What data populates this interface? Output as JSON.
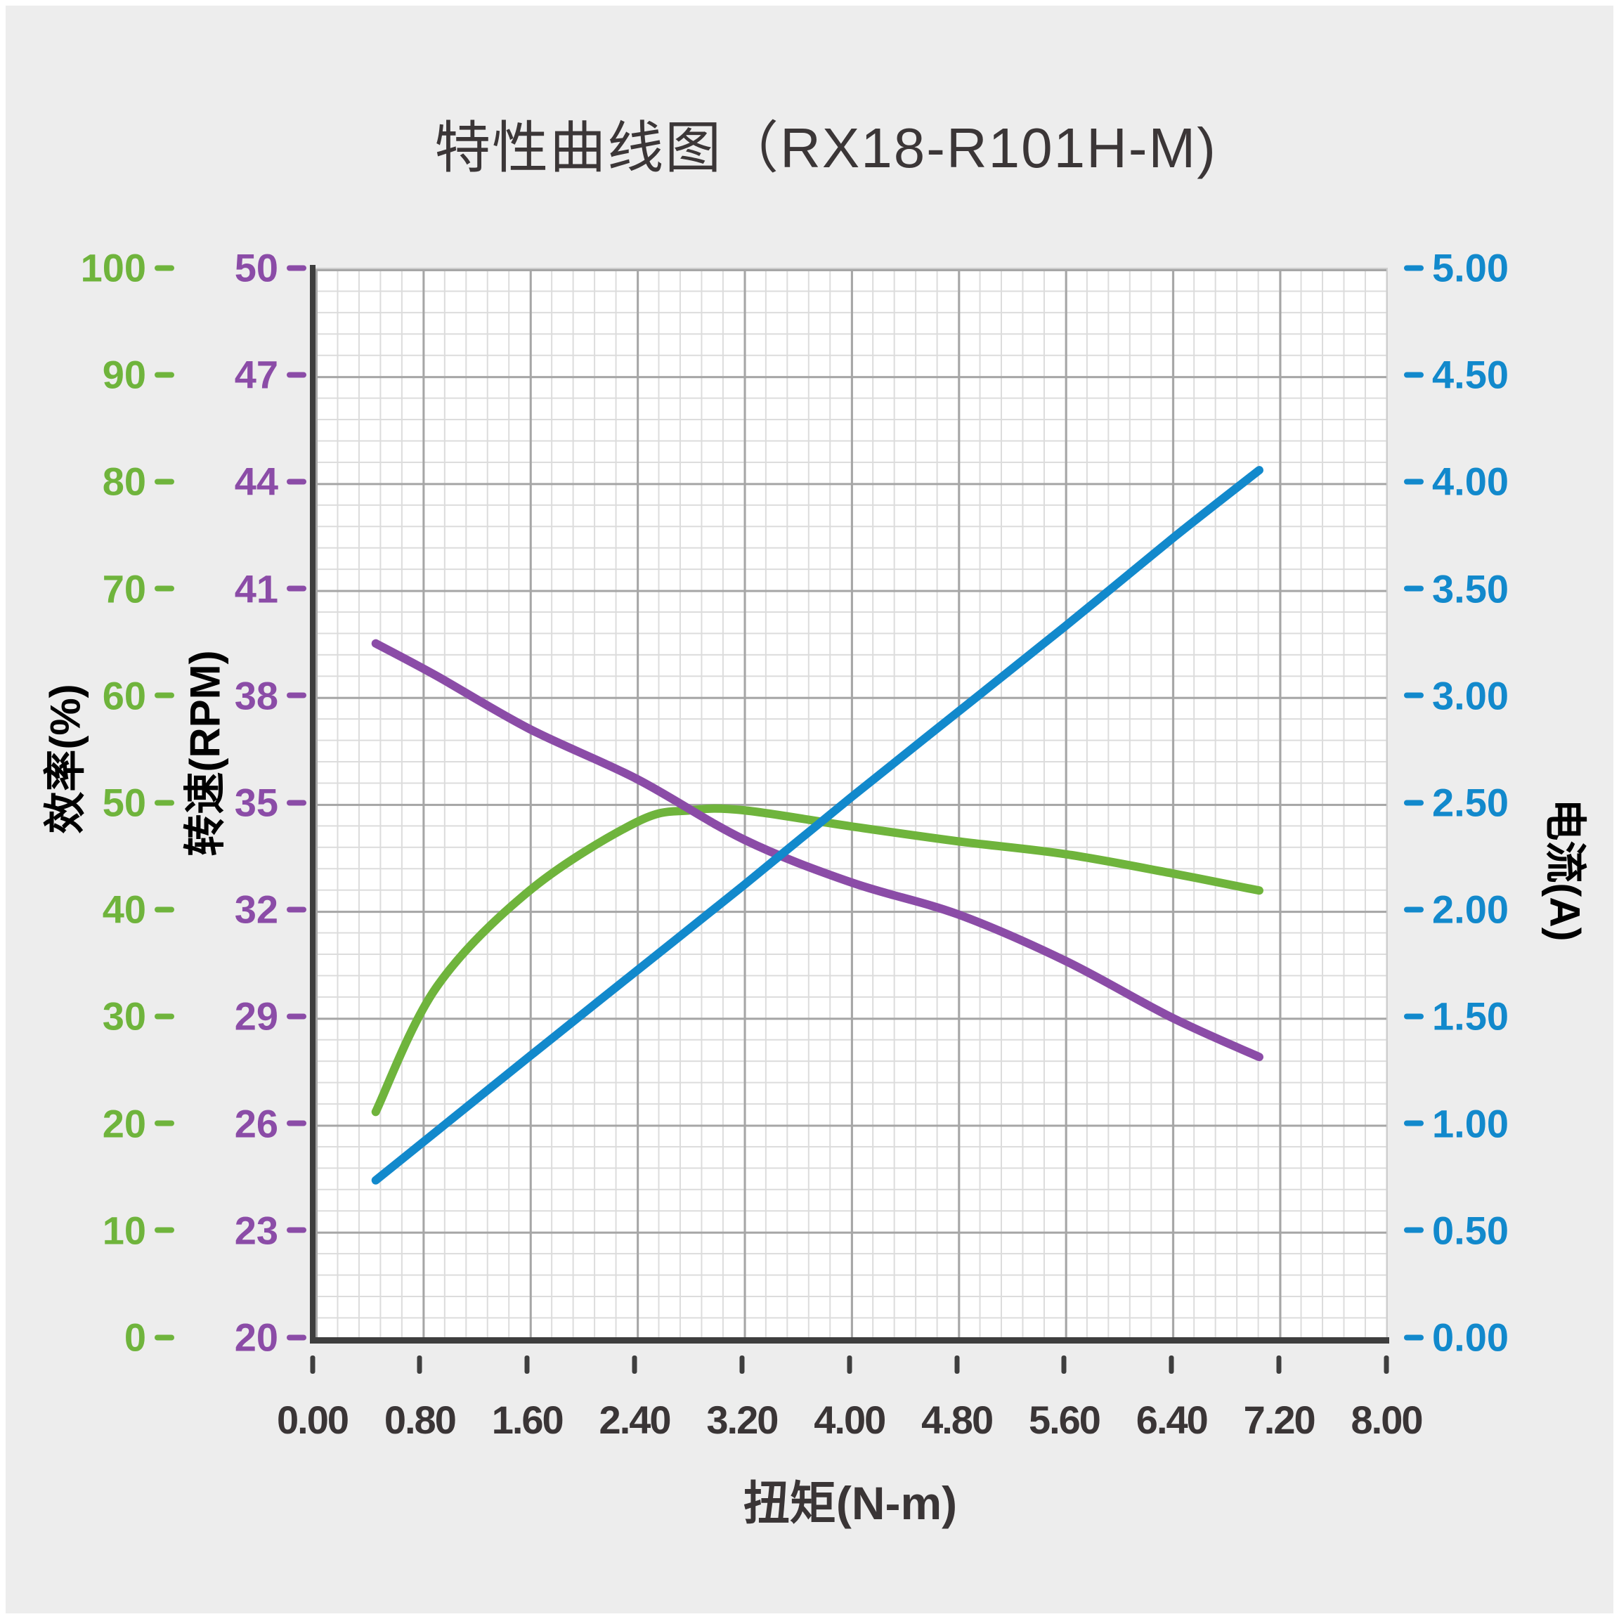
{
  "title": "特性曲线图（RX18-R101H-M)",
  "colors": {
    "efficiency_green": "#6fb43c",
    "speed_purple": "#8b4ca7",
    "current_blue": "#1289cc",
    "text_dark": "#3a3536",
    "axis_line": "#3e3e3e",
    "grid_major": "#a6a6a6",
    "grid_minor": "#dcdcdc",
    "panel_bg": "#ededed",
    "plot_bg": "#ffffff"
  },
  "axes": {
    "x": {
      "label": "扭矩(N-m)",
      "ticks": [
        "0.00",
        "0.80",
        "1.60",
        "2.40",
        "3.20",
        "4.00",
        "4.80",
        "5.60",
        "6.40",
        "7.20",
        "8.00"
      ],
      "range": [
        0,
        8
      ]
    },
    "efficiency": {
      "label": "效率(%)",
      "ticks": [
        "100",
        "90",
        "80",
        "70",
        "60",
        "50",
        "40",
        "30",
        "20",
        "10",
        "0"
      ],
      "range": [
        0,
        100
      ]
    },
    "speed": {
      "label": "转速(RPM)",
      "ticks": [
        "50",
        "47",
        "44",
        "41",
        "38",
        "35",
        "32",
        "29",
        "26",
        "23",
        "20"
      ],
      "range": [
        20,
        50
      ]
    },
    "current": {
      "label": "电流(A)",
      "ticks": [
        "5.00",
        "4.50",
        "4.00",
        "3.50",
        "3.00",
        "2.50",
        "2.00",
        "1.50",
        "1.00",
        "0.50",
        "0.00"
      ],
      "range": [
        0,
        5
      ]
    }
  },
  "chart_data": {
    "type": "line",
    "title": "特性曲线图（RX18-R101H-M)",
    "xlabel": "扭矩(N-m)",
    "x_range": [
      0,
      8
    ],
    "grid": "on",
    "legend": "none",
    "series": [
      {
        "name": "效率(%)",
        "axis_side": "left-outer",
        "color": "#6fb43c",
        "value_range": [
          0,
          100
        ],
        "points": [
          [
            0.45,
            21.2
          ],
          [
            0.9,
            32.8
          ],
          [
            1.6,
            41.9
          ],
          [
            2.4,
            48.3
          ],
          [
            2.8,
            49.4
          ],
          [
            3.2,
            49.4
          ],
          [
            4.0,
            47.9
          ],
          [
            4.8,
            46.5
          ],
          [
            5.6,
            45.3
          ],
          [
            6.4,
            43.5
          ],
          [
            7.05,
            41.9
          ]
        ]
      },
      {
        "name": "转速(RPM)",
        "axis_side": "left-inner",
        "color": "#8b4ca7",
        "value_range": [
          20,
          50
        ],
        "points": [
          [
            0.45,
            39.5
          ],
          [
            0.9,
            38.6
          ],
          [
            1.6,
            37.1
          ],
          [
            2.4,
            35.7
          ],
          [
            3.2,
            34.0
          ],
          [
            4.0,
            32.8
          ],
          [
            4.8,
            31.9
          ],
          [
            5.6,
            30.6
          ],
          [
            6.4,
            29.0
          ],
          [
            7.05,
            27.9
          ]
        ]
      },
      {
        "name": "电流(A)",
        "axis_side": "right",
        "color": "#1289cc",
        "value_range": [
          0,
          5
        ],
        "points": [
          [
            0.45,
            0.74
          ],
          [
            1.6,
            1.32
          ],
          [
            2.4,
            1.72
          ],
          [
            3.2,
            2.12
          ],
          [
            4.0,
            2.53
          ],
          [
            4.8,
            2.93
          ],
          [
            5.6,
            3.33
          ],
          [
            6.4,
            3.74
          ],
          [
            7.05,
            4.06
          ]
        ]
      }
    ]
  }
}
